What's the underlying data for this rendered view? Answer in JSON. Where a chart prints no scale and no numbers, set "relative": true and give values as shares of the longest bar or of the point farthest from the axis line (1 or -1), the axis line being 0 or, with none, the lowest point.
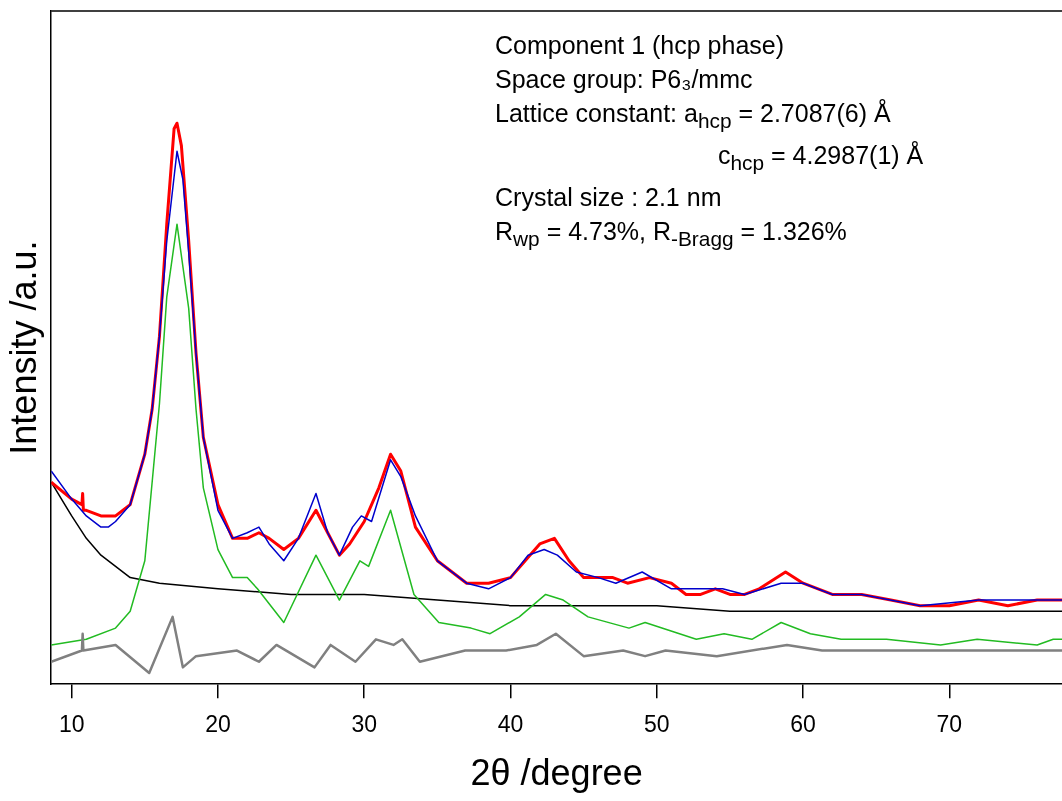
{
  "chart_data": {
    "type": "line",
    "relative": true,
    "xlabel": "2θ /degree",
    "ylabel": "Intensity /a.u.",
    "xlim": [
      8.6,
      77.7
    ],
    "xticks": [
      10,
      20,
      30,
      40,
      50,
      60,
      70
    ],
    "grid": false,
    "legend": false,
    "annotations": [
      "Component 1 (hcp phase)",
      "Space group: P6₃/mmc",
      "Lattice constant: a$_{hcp}$ = 2.7087(6) Å",
      "c$_{hcp}$ = 4.2987(1) Å",
      "Crystal size : 2.1 nm",
      "R$_{wp}$ = 4.73%, R$_{-Bragg}$ = 1.326%"
    ],
    "series": [
      {
        "color": "#000000",
        "x": [
          8.6,
          10,
          11,
          12,
          13,
          14,
          16,
          20,
          25,
          30,
          35,
          40,
          45,
          50,
          55,
          60,
          65,
          70,
          74,
          77.7
        ],
        "values": [
          0.36,
          0.3,
          0.26,
          0.23,
          0.21,
          0.19,
          0.18,
          0.17,
          0.16,
          0.16,
          0.15,
          0.14,
          0.14,
          0.14,
          0.13,
          0.13,
          0.13,
          0.13,
          0.13,
          0.13
        ]
      },
      {
        "color": "#22bb22",
        "x": [
          8.6,
          11,
          13,
          14,
          15,
          16,
          16.5,
          17.2,
          18,
          18.5,
          19,
          20,
          21,
          22,
          22.7,
          24.5,
          26.7,
          28.3,
          29.7,
          30.3,
          31.8,
          33.4,
          35.1,
          37.3,
          38.6,
          40.6,
          42.4,
          43.6,
          45.3,
          48.1,
          49.2,
          52.7,
          54.6,
          56.5,
          58.5,
          60.5,
          62.6,
          64,
          65.7,
          69.4,
          71.9,
          76,
          77.1,
          77.7
        ],
        "values": [
          0.07,
          0.08,
          0.1,
          0.13,
          0.22,
          0.5,
          0.69,
          0.82,
          0.67,
          0.49,
          0.35,
          0.24,
          0.19,
          0.19,
          0.17,
          0.11,
          0.23,
          0.15,
          0.22,
          0.21,
          0.31,
          0.16,
          0.11,
          0.1,
          0.09,
          0.12,
          0.16,
          0.15,
          0.12,
          0.1,
          0.11,
          0.08,
          0.09,
          0.08,
          0.11,
          0.09,
          0.08,
          0.08,
          0.08,
          0.07,
          0.08,
          0.07,
          0.08,
          0.08
        ]
      },
      {
        "color": "#808080",
        "x": [
          8.6,
          10.7,
          10.75,
          10.8,
          13,
          15.3,
          16.9,
          17.6,
          18.5,
          21.3,
          22.8,
          24,
          26.6,
          27.7,
          29.4,
          30.8,
          32,
          32.6,
          33.8,
          36.9,
          39.7,
          41.8,
          43.1,
          45,
          47.7,
          49.2,
          50.6,
          54.1,
          58.9,
          61.3,
          63.7,
          68.6,
          75.5,
          77.7
        ],
        "values": [
          0.04,
          0.06,
          0.09,
          0.06,
          0.07,
          0.02,
          0.12,
          0.03,
          0.05,
          0.06,
          0.04,
          0.07,
          0.03,
          0.07,
          0.04,
          0.08,
          0.07,
          0.08,
          0.04,
          0.06,
          0.06,
          0.07,
          0.09,
          0.05,
          0.06,
          0.05,
          0.06,
          0.05,
          0.07,
          0.06,
          0.06,
          0.06,
          0.06,
          0.06
        ]
      },
      {
        "color": "#ff0000",
        "x": [
          8.6,
          10,
          10.7,
          10.75,
          10.8,
          11,
          12,
          13,
          14,
          15,
          15.5,
          16,
          16.5,
          17,
          17.2,
          17.5,
          18,
          18.5,
          19,
          20,
          21,
          22,
          22.8,
          23.5,
          24.5,
          25.5,
          26.7,
          27.5,
          28.3,
          29,
          30,
          31,
          31.8,
          32.5,
          33.5,
          35,
          37,
          38.5,
          40,
          41,
          42,
          43,
          44,
          45,
          46,
          47,
          48,
          49.5,
          51,
          52,
          53,
          54,
          55,
          56,
          57,
          58.8,
          60,
          62,
          64,
          66,
          68,
          70,
          72,
          74,
          76,
          77.7
        ],
        "values": [
          0.36,
          0.33,
          0.32,
          0.34,
          0.31,
          0.31,
          0.3,
          0.3,
          0.32,
          0.41,
          0.49,
          0.62,
          0.82,
          0.99,
          1,
          0.96,
          0.79,
          0.59,
          0.44,
          0.32,
          0.26,
          0.26,
          0.27,
          0.26,
          0.24,
          0.26,
          0.31,
          0.27,
          0.23,
          0.25,
          0.29,
          0.35,
          0.41,
          0.38,
          0.28,
          0.22,
          0.18,
          0.18,
          0.19,
          0.22,
          0.25,
          0.26,
          0.22,
          0.19,
          0.19,
          0.19,
          0.18,
          0.19,
          0.18,
          0.16,
          0.16,
          0.17,
          0.16,
          0.16,
          0.17,
          0.2,
          0.18,
          0.16,
          0.16,
          0.15,
          0.14,
          0.14,
          0.15,
          0.14,
          0.15,
          0.15
        ]
      },
      {
        "color": "#0000cc",
        "x": [
          8.6,
          10,
          11,
          12,
          12.5,
          13,
          14,
          15,
          15.5,
          16,
          16.5,
          17.2,
          17.6,
          18,
          18.5,
          19,
          20,
          21,
          22,
          22.8,
          23.5,
          24.5,
          25.5,
          26.7,
          27.5,
          28.3,
          29.2,
          29.8,
          30.5,
          31.8,
          32.5,
          33.5,
          35,
          37,
          38.5,
          40,
          41.2,
          42.3,
          43.2,
          44.5,
          46,
          47.2,
          49,
          51,
          53,
          54.5,
          56,
          58.5,
          60,
          62,
          64,
          68,
          72,
          77.7
        ],
        "values": [
          0.38,
          0.33,
          0.3,
          0.28,
          0.28,
          0.29,
          0.32,
          0.41,
          0.49,
          0.62,
          0.79,
          0.95,
          0.9,
          0.77,
          0.59,
          0.44,
          0.31,
          0.26,
          0.27,
          0.28,
          0.25,
          0.22,
          0.26,
          0.34,
          0.27,
          0.23,
          0.28,
          0.3,
          0.29,
          0.4,
          0.37,
          0.3,
          0.22,
          0.18,
          0.17,
          0.19,
          0.23,
          0.24,
          0.23,
          0.2,
          0.19,
          0.18,
          0.2,
          0.17,
          0.17,
          0.17,
          0.16,
          0.18,
          0.18,
          0.16,
          0.16,
          0.14,
          0.15,
          0.15
        ]
      }
    ]
  }
}
